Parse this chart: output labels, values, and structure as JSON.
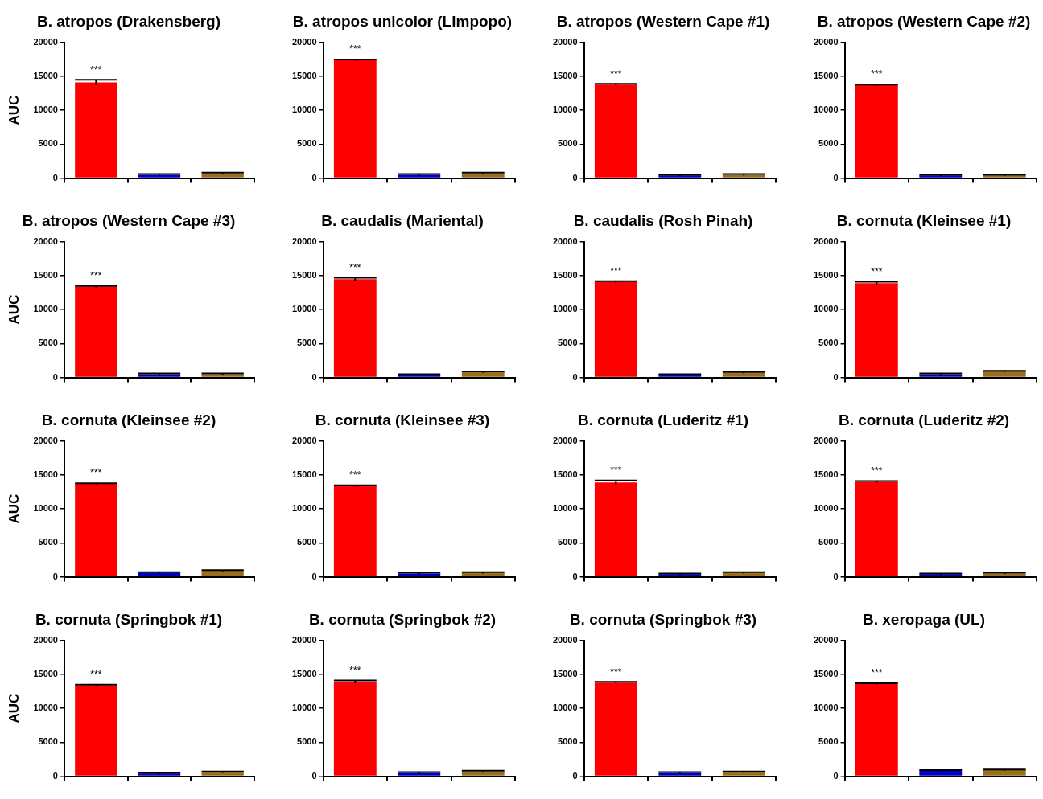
{
  "chart_data": [
    {
      "type": "bar",
      "title": "B. atropos (Drakensberg)",
      "ylabel": "AUC",
      "categories": [
        null,
        null,
        null
      ],
      "values": [
        14100,
        500,
        700
      ],
      "errors": [
        400,
        100,
        100
      ],
      "colors": [
        "#ff0000",
        "#0000cc",
        "#996f1e"
      ],
      "ylim": [
        0,
        20000
      ],
      "yticks": [
        0,
        5000,
        10000,
        15000,
        20000
      ],
      "annotations": [
        "***"
      ]
    },
    {
      "type": "bar",
      "title": "B. atropos unicolor (Limpopo)",
      "categories": [
        null,
        null,
        null
      ],
      "values": [
        17400,
        500,
        700
      ],
      "errors": [
        100,
        100,
        100
      ],
      "colors": [
        "#ff0000",
        "#0000cc",
        "#996f1e"
      ],
      "ylim": [
        0,
        20000
      ],
      "yticks": [
        0,
        5000,
        10000,
        15000,
        20000
      ],
      "annotations": [
        "***"
      ]
    },
    {
      "type": "bar",
      "title": "B. atropos (Western Cape #1)",
      "categories": [
        null,
        null,
        null
      ],
      "values": [
        13800,
        400,
        500
      ],
      "errors": [
        100,
        100,
        100
      ],
      "colors": [
        "#ff0000",
        "#0000cc",
        "#996f1e"
      ],
      "ylim": [
        0,
        20000
      ],
      "yticks": [
        0,
        5000,
        10000,
        15000,
        20000
      ],
      "annotations": [
        "***"
      ]
    },
    {
      "type": "bar",
      "title": "B. atropos (Western Cape #2)",
      "categories": [
        null,
        null,
        null
      ],
      "values": [
        13700,
        400,
        400
      ],
      "errors": [
        100,
        100,
        100
      ],
      "colors": [
        "#ff0000",
        "#0000cc",
        "#996f1e"
      ],
      "ylim": [
        0,
        20000
      ],
      "yticks": [
        0,
        5000,
        10000,
        15000,
        20000
      ],
      "annotations": [
        "***"
      ]
    },
    {
      "type": "bar",
      "title": "B. atropos (Western Cape #3)",
      "ylabel": "AUC",
      "categories": [
        null,
        null,
        null
      ],
      "values": [
        13400,
        500,
        500
      ],
      "errors": [
        100,
        100,
        100
      ],
      "colors": [
        "#ff0000",
        "#0000cc",
        "#996f1e"
      ],
      "ylim": [
        0,
        20000
      ],
      "yticks": [
        0,
        5000,
        10000,
        15000,
        20000
      ],
      "annotations": [
        "***"
      ]
    },
    {
      "type": "bar",
      "title": "B. caudalis (Mariental)",
      "categories": [
        null,
        null,
        null
      ],
      "values": [
        14500,
        400,
        800
      ],
      "errors": [
        200,
        100,
        100
      ],
      "colors": [
        "#ff0000",
        "#0000cc",
        "#996f1e"
      ],
      "ylim": [
        0,
        20000
      ],
      "yticks": [
        0,
        5000,
        10000,
        15000,
        20000
      ],
      "annotations": [
        "***"
      ]
    },
    {
      "type": "bar",
      "title": "B. caudalis (Rosh Pinah)",
      "categories": [
        null,
        null,
        null
      ],
      "values": [
        14100,
        400,
        700
      ],
      "errors": [
        100,
        100,
        100
      ],
      "colors": [
        "#ff0000",
        "#0000cc",
        "#996f1e"
      ],
      "ylim": [
        0,
        20000
      ],
      "yticks": [
        0,
        5000,
        10000,
        15000,
        20000
      ],
      "annotations": [
        "***"
      ]
    },
    {
      "type": "bar",
      "title": "B. cornuta (Kleinsee #1)",
      "categories": [
        null,
        null,
        null
      ],
      "values": [
        13900,
        500,
        900
      ],
      "errors": [
        200,
        100,
        100
      ],
      "colors": [
        "#ff0000",
        "#0000cc",
        "#996f1e"
      ],
      "ylim": [
        0,
        20000
      ],
      "yticks": [
        0,
        5000,
        10000,
        15000,
        20000
      ],
      "annotations": [
        "***"
      ]
    },
    {
      "type": "bar",
      "title": "B. cornuta (Kleinsee #2)",
      "ylabel": "AUC",
      "categories": [
        null,
        null,
        null
      ],
      "values": [
        13700,
        600,
        900
      ],
      "errors": [
        100,
        100,
        100
      ],
      "colors": [
        "#ff0000",
        "#0000cc",
        "#996f1e"
      ],
      "ylim": [
        0,
        20000
      ],
      "yticks": [
        0,
        5000,
        10000,
        15000,
        20000
      ],
      "annotations": [
        "***"
      ]
    },
    {
      "type": "bar",
      "title": "B. cornuta (Kleinsee #3)",
      "categories": [
        null,
        null,
        null
      ],
      "values": [
        13400,
        500,
        600
      ],
      "errors": [
        100,
        100,
        100
      ],
      "colors": [
        "#ff0000",
        "#0000cc",
        "#996f1e"
      ],
      "ylim": [
        0,
        20000
      ],
      "yticks": [
        0,
        5000,
        10000,
        15000,
        20000
      ],
      "annotations": [
        "***"
      ]
    },
    {
      "type": "bar",
      "title": "B. cornuta (Luderitz #1)",
      "categories": [
        null,
        null,
        null
      ],
      "values": [
        13900,
        400,
        600
      ],
      "errors": [
        300,
        100,
        100
      ],
      "colors": [
        "#ff0000",
        "#0000cc",
        "#996f1e"
      ],
      "ylim": [
        0,
        20000
      ],
      "yticks": [
        0,
        5000,
        10000,
        15000,
        20000
      ],
      "annotations": [
        "***"
      ]
    },
    {
      "type": "bar",
      "title": "B. cornuta (Luderitz #2)",
      "categories": [
        null,
        null,
        null
      ],
      "values": [
        14000,
        400,
        500
      ],
      "errors": [
        100,
        100,
        100
      ],
      "colors": [
        "#ff0000",
        "#0000cc",
        "#996f1e"
      ],
      "ylim": [
        0,
        20000
      ],
      "yticks": [
        0,
        5000,
        10000,
        15000,
        20000
      ],
      "annotations": [
        "***"
      ]
    },
    {
      "type": "bar",
      "title": "B. cornuta (Springbok #1)",
      "ylabel": "AUC",
      "categories": [
        null,
        null,
        null
      ],
      "values": [
        13400,
        400,
        600
      ],
      "errors": [
        100,
        100,
        100
      ],
      "colors": [
        "#ff0000",
        "#0000cc",
        "#996f1e"
      ],
      "ylim": [
        0,
        20000
      ],
      "yticks": [
        0,
        5000,
        10000,
        15000,
        20000
      ],
      "annotations": [
        "***"
      ]
    },
    {
      "type": "bar",
      "title": "B. cornuta (Springbok #2)",
      "categories": [
        null,
        null,
        null
      ],
      "values": [
        13900,
        500,
        700
      ],
      "errors": [
        200,
        100,
        100
      ],
      "colors": [
        "#ff0000",
        "#0000cc",
        "#996f1e"
      ],
      "ylim": [
        0,
        20000
      ],
      "yticks": [
        0,
        5000,
        10000,
        15000,
        20000
      ],
      "annotations": [
        "***"
      ]
    },
    {
      "type": "bar",
      "title": "B. cornuta (Springbok #3)",
      "categories": [
        null,
        null,
        null
      ],
      "values": [
        13800,
        500,
        600
      ],
      "errors": [
        100,
        100,
        100
      ],
      "colors": [
        "#ff0000",
        "#0000cc",
        "#996f1e"
      ],
      "ylim": [
        0,
        20000
      ],
      "yticks": [
        0,
        5000,
        10000,
        15000,
        20000
      ],
      "annotations": [
        "***"
      ]
    },
    {
      "type": "bar",
      "title": "B. xeropaga (UL)",
      "categories": [
        null,
        null,
        null
      ],
      "values": [
        13600,
        800,
        900
      ],
      "errors": [
        100,
        100,
        100
      ],
      "colors": [
        "#ff0000",
        "#0000cc",
        "#996f1e"
      ],
      "ylim": [
        0,
        20000
      ],
      "yticks": [
        0,
        5000,
        10000,
        15000,
        20000
      ],
      "annotations": [
        "***"
      ]
    }
  ]
}
